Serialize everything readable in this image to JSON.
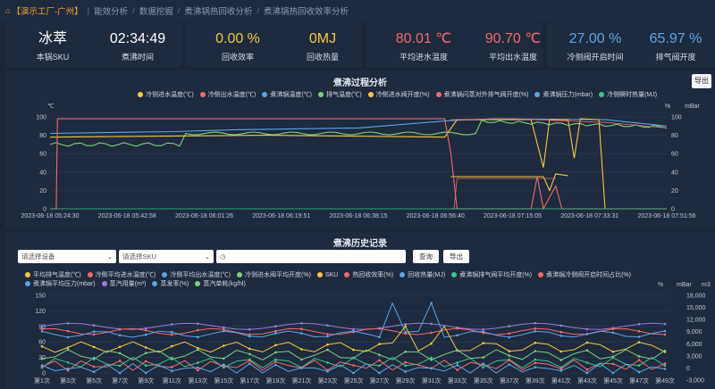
{
  "breadcrumb": {
    "home": "【演示工厂-广州】",
    "items": [
      "能效分析",
      "数据挖掘",
      "煮沸锅热回收分析",
      "煮沸锅热回收效率分析"
    ]
  },
  "kpis": [
    {
      "value": "冰萃",
      "label": "本锅SKU",
      "color": "#ffffff"
    },
    {
      "value": "02:34:49",
      "label": "煮沸时间",
      "color": "#ffffff"
    },
    {
      "value": "0.00 %",
      "label": "回收效率",
      "color": "#f5c842"
    },
    {
      "value": "0MJ",
      "label": "回收热量",
      "color": "#f5c842"
    },
    {
      "value": "80.01 ℃",
      "label": "平均进水温度",
      "color": "#f06a6a"
    },
    {
      "value": "90.70 ℃",
      "label": "平均出水温度",
      "color": "#f06a6a"
    },
    {
      "value": "27.00 %",
      "label": "冷侧阀开启时间",
      "color": "#5aa6e8"
    },
    {
      "value": "65.97 %",
      "label": "排气阀开度",
      "color": "#5aa6e8"
    }
  ],
  "process_panel": {
    "title": "煮沸过程分析",
    "export_label": "导出",
    "legend": [
      {
        "name": "冷侧进水温度(℃)",
        "color": "#f5c842"
      },
      {
        "name": "冷侧出水温度(℃)",
        "color": "#f06a6a"
      },
      {
        "name": "煮沸锅温度(℃)",
        "color": "#5aa6e8"
      },
      {
        "name": "排气温度(℃)",
        "color": "#7bd07b"
      },
      {
        "name": "冷侧进水阀开度(%)",
        "color": "#f5c842"
      },
      {
        "name": "煮沸锅闪蒸对外排气阀开度(%)",
        "color": "#f06a6a"
      },
      {
        "name": "煮沸锅压力(mbar)",
        "color": "#5aa6e8"
      },
      {
        "name": "冷侧瞬时热量(MJ)",
        "color": "#3cc48a"
      }
    ],
    "y_left_unit": "℃",
    "y_right_unit_1": "%",
    "y_right_unit_2": "mBar",
    "y_ticks": [
      "100",
      "80",
      "60",
      "40",
      "20",
      "0"
    ],
    "x_ticks": [
      "2023-06-18 05:24:30",
      "2023-06-18 05:42:58",
      "2023-06-18 06:01:26",
      "2023-06-18 06:19:51",
      "2023-06-18 06:38:15",
      "2023-06-18 06:56:40",
      "2023-06-18 07:15:05",
      "2023-06-18 07:33:31",
      "2023-06-18 07:51:56"
    ]
  },
  "history_panel": {
    "title": "煮沸历史记录",
    "export_label": "导出",
    "device_placeholder": "请选择设备",
    "sku_placeholder": "请选择SKU",
    "query_label": "查询",
    "legend": [
      {
        "name": "平均排气温度(℃)",
        "color": "#f5c842"
      },
      {
        "name": "冷侧平均进水温度(℃)",
        "color": "#f06a6a"
      },
      {
        "name": "冷侧平均出水温度(℃)",
        "color": "#5aa6e8"
      },
      {
        "name": "冷侧进水阀平均开度(%)",
        "color": "#7bd07b"
      },
      {
        "name": "SKU",
        "color": "#f5c842"
      },
      {
        "name": "热回收效率(%)",
        "color": "#f06a6a"
      },
      {
        "name": "回收热量(MJ)",
        "color": "#5aa6e8"
      },
      {
        "name": "煮沸锅排气阀平均开度(%)",
        "color": "#3cc48a"
      },
      {
        "name": "煮沸锅冷侧阀开启时间占比(%)",
        "color": "#f06a6a"
      },
      {
        "name": "煮沸锅平均压力(mbar)",
        "color": "#5aa6e8"
      },
      {
        "name": "蒸汽用量(m³)",
        "color": "#9b7be0"
      },
      {
        "name": "蒸发率(%)",
        "color": "#5aa6e8"
      },
      {
        "name": "蒸汽单耗(kg/hl)",
        "color": "#7bd07b"
      }
    ],
    "y_left_ticks": [
      "150",
      "120",
      "90",
      "60",
      "30",
      "0"
    ],
    "y_right_ticks": [
      "18,000",
      "15,000",
      "12,000",
      "9,000",
      "6,000",
      "3,000",
      "0",
      "-3,000"
    ],
    "y_right_unit_1": "%",
    "y_right_unit_2": "mBar",
    "y_right_unit_3": "m3",
    "x_ticks": [
      "第1次",
      "第3次",
      "第5次",
      "第7次",
      "第9次",
      "第11次",
      "第13次",
      "第15次",
      "第17次",
      "第19次",
      "第21次",
      "第23次",
      "第25次",
      "第27次",
      "第29次",
      "第31次",
      "第33次",
      "第35次",
      "第37次",
      "第39次",
      "第41次",
      "第43次",
      "第45次",
      "第47次",
      "第49次"
    ]
  }
}
